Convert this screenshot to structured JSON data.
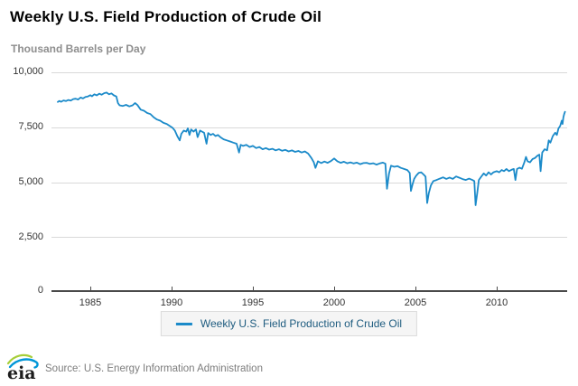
{
  "header": {
    "title": "Weekly U.S. Field Production of Crude Oil",
    "units_label": "Thousand Barrels per Day"
  },
  "legend": {
    "label": "Weekly U.S. Field Production of Crude Oil"
  },
  "footer": {
    "logo_text": "eia",
    "source": "Source: U.S. Energy Information Administration"
  },
  "colors": {
    "line": "#1b8ac9",
    "legend_text": "#1d5b7f",
    "grid": "#d9d9d9",
    "axis": "#4a4a4a",
    "subtitle": "#8e8e8e",
    "logo_green": "#a6ce39",
    "logo_blue": "#0096d7"
  },
  "chart_data": {
    "type": "line",
    "title": "Weekly U.S. Field Production of Crude Oil",
    "ylabel": "Thousand Barrels per Day",
    "xlabel": "",
    "x_tick_labels": [
      "1985",
      "1990",
      "1995",
      "2000",
      "2005",
      "2010"
    ],
    "y_tick_labels": [
      "10,000",
      "7,500",
      "5,000",
      "2,500",
      "0"
    ],
    "y_tick_values": [
      10000,
      7500,
      5000,
      2500,
      0
    ],
    "x_range": [
      1982.8,
      2014.4
    ],
    "y_range": [
      0,
      10000
    ],
    "grid": "horizontal",
    "legend_position": "bottom-center",
    "series": [
      {
        "name": "Weekly U.S. Field Production of Crude Oil",
        "points": [
          [
            1983.0,
            8650
          ],
          [
            1983.1,
            8700
          ],
          [
            1983.2,
            8660
          ],
          [
            1983.35,
            8720
          ],
          [
            1983.5,
            8690
          ],
          [
            1983.65,
            8740
          ],
          [
            1983.8,
            8710
          ],
          [
            1983.95,
            8780
          ],
          [
            1984.1,
            8800
          ],
          [
            1984.25,
            8760
          ],
          [
            1984.4,
            8850
          ],
          [
            1984.55,
            8810
          ],
          [
            1984.7,
            8880
          ],
          [
            1984.85,
            8900
          ],
          [
            1985.0,
            8960
          ],
          [
            1985.1,
            8910
          ],
          [
            1985.25,
            9000
          ],
          [
            1985.4,
            8950
          ],
          [
            1985.55,
            9030
          ],
          [
            1985.7,
            8980
          ],
          [
            1985.85,
            9050
          ],
          [
            1986.0,
            9080
          ],
          [
            1986.15,
            9000
          ],
          [
            1986.3,
            9040
          ],
          [
            1986.45,
            8950
          ],
          [
            1986.6,
            8900
          ],
          [
            1986.7,
            8600
          ],
          [
            1986.8,
            8500
          ],
          [
            1987.0,
            8470
          ],
          [
            1987.2,
            8520
          ],
          [
            1987.4,
            8450
          ],
          [
            1987.6,
            8500
          ],
          [
            1987.75,
            8600
          ],
          [
            1987.9,
            8510
          ],
          [
            1988.1,
            8300
          ],
          [
            1988.3,
            8250
          ],
          [
            1988.5,
            8150
          ],
          [
            1988.7,
            8100
          ],
          [
            1988.9,
            7950
          ],
          [
            1989.1,
            7850
          ],
          [
            1989.3,
            7800
          ],
          [
            1989.5,
            7700
          ],
          [
            1989.7,
            7650
          ],
          [
            1989.9,
            7550
          ],
          [
            1990.05,
            7480
          ],
          [
            1990.2,
            7350
          ],
          [
            1990.35,
            7100
          ],
          [
            1990.5,
            6900
          ],
          [
            1990.6,
            7200
          ],
          [
            1990.75,
            7350
          ],
          [
            1990.9,
            7300
          ],
          [
            1991.0,
            7450
          ],
          [
            1991.1,
            7150
          ],
          [
            1991.2,
            7400
          ],
          [
            1991.35,
            7300
          ],
          [
            1991.5,
            7400
          ],
          [
            1991.6,
            7050
          ],
          [
            1991.75,
            7350
          ],
          [
            1991.9,
            7290
          ],
          [
            1992.0,
            7250
          ],
          [
            1992.15,
            6750
          ],
          [
            1992.25,
            7240
          ],
          [
            1992.4,
            7150
          ],
          [
            1992.55,
            7200
          ],
          [
            1992.7,
            7100
          ],
          [
            1992.85,
            7150
          ],
          [
            1993.0,
            7050
          ],
          [
            1993.2,
            6950
          ],
          [
            1993.4,
            6900
          ],
          [
            1993.6,
            6850
          ],
          [
            1993.8,
            6800
          ],
          [
            1994.0,
            6750
          ],
          [
            1994.15,
            6350
          ],
          [
            1994.25,
            6700
          ],
          [
            1994.4,
            6650
          ],
          [
            1994.6,
            6700
          ],
          [
            1994.8,
            6600
          ],
          [
            1995.0,
            6650
          ],
          [
            1995.2,
            6550
          ],
          [
            1995.4,
            6600
          ],
          [
            1995.6,
            6500
          ],
          [
            1995.8,
            6550
          ],
          [
            1996.0,
            6480
          ],
          [
            1996.2,
            6520
          ],
          [
            1996.4,
            6450
          ],
          [
            1996.6,
            6500
          ],
          [
            1996.8,
            6430
          ],
          [
            1997.0,
            6470
          ],
          [
            1997.2,
            6400
          ],
          [
            1997.4,
            6450
          ],
          [
            1997.6,
            6380
          ],
          [
            1997.8,
            6420
          ],
          [
            1998.0,
            6350
          ],
          [
            1998.2,
            6400
          ],
          [
            1998.4,
            6300
          ],
          [
            1998.6,
            6100
          ],
          [
            1998.75,
            5900
          ],
          [
            1998.85,
            5650
          ],
          [
            1999.0,
            5950
          ],
          [
            1999.2,
            5870
          ],
          [
            1999.4,
            5940
          ],
          [
            1999.6,
            5880
          ],
          [
            1999.8,
            5960
          ],
          [
            2000.0,
            6080
          ],
          [
            2000.2,
            5950
          ],
          [
            2000.4,
            5880
          ],
          [
            2000.6,
            5930
          ],
          [
            2000.8,
            5860
          ],
          [
            2001.0,
            5900
          ],
          [
            2001.2,
            5850
          ],
          [
            2001.4,
            5890
          ],
          [
            2001.6,
            5820
          ],
          [
            2001.8,
            5870
          ],
          [
            2002.0,
            5880
          ],
          [
            2002.2,
            5830
          ],
          [
            2002.4,
            5860
          ],
          [
            2002.6,
            5800
          ],
          [
            2002.8,
            5850
          ],
          [
            2003.0,
            5890
          ],
          [
            2003.15,
            5840
          ],
          [
            2003.25,
            4700
          ],
          [
            2003.38,
            5400
          ],
          [
            2003.5,
            5750
          ],
          [
            2003.7,
            5700
          ],
          [
            2003.9,
            5730
          ],
          [
            2004.1,
            5650
          ],
          [
            2004.3,
            5600
          ],
          [
            2004.5,
            5550
          ],
          [
            2004.65,
            5420
          ],
          [
            2004.72,
            4600
          ],
          [
            2004.82,
            4900
          ],
          [
            2004.92,
            5150
          ],
          [
            2005.05,
            5300
          ],
          [
            2005.2,
            5420
          ],
          [
            2005.35,
            5450
          ],
          [
            2005.5,
            5350
          ],
          [
            2005.62,
            5250
          ],
          [
            2005.72,
            4050
          ],
          [
            2005.82,
            4500
          ],
          [
            2005.95,
            4850
          ],
          [
            2006.1,
            5050
          ],
          [
            2006.3,
            5100
          ],
          [
            2006.5,
            5160
          ],
          [
            2006.7,
            5220
          ],
          [
            2006.9,
            5150
          ],
          [
            2007.1,
            5210
          ],
          [
            2007.3,
            5150
          ],
          [
            2007.5,
            5260
          ],
          [
            2007.7,
            5200
          ],
          [
            2007.9,
            5140
          ],
          [
            2008.1,
            5100
          ],
          [
            2008.3,
            5160
          ],
          [
            2008.5,
            5100
          ],
          [
            2008.62,
            5050
          ],
          [
            2008.7,
            3950
          ],
          [
            2008.8,
            4500
          ],
          [
            2008.9,
            5100
          ],
          [
            2009.05,
            5250
          ],
          [
            2009.2,
            5400
          ],
          [
            2009.35,
            5300
          ],
          [
            2009.5,
            5450
          ],
          [
            2009.65,
            5350
          ],
          [
            2009.8,
            5450
          ],
          [
            2010.0,
            5500
          ],
          [
            2010.15,
            5450
          ],
          [
            2010.3,
            5550
          ],
          [
            2010.45,
            5500
          ],
          [
            2010.6,
            5600
          ],
          [
            2010.75,
            5500
          ],
          [
            2010.9,
            5560
          ],
          [
            2011.05,
            5600
          ],
          [
            2011.15,
            5100
          ],
          [
            2011.25,
            5600
          ],
          [
            2011.4,
            5660
          ],
          [
            2011.55,
            5610
          ],
          [
            2011.7,
            5900
          ],
          [
            2011.8,
            6150
          ],
          [
            2011.9,
            5950
          ],
          [
            2012.05,
            5900
          ],
          [
            2012.2,
            6050
          ],
          [
            2012.35,
            6100
          ],
          [
            2012.5,
            6200
          ],
          [
            2012.62,
            6250
          ],
          [
            2012.7,
            5500
          ],
          [
            2012.8,
            6350
          ],
          [
            2012.95,
            6500
          ],
          [
            2013.1,
            6450
          ],
          [
            2013.2,
            6900
          ],
          [
            2013.3,
            6800
          ],
          [
            2013.45,
            7100
          ],
          [
            2013.6,
            7250
          ],
          [
            2013.7,
            7150
          ],
          [
            2013.8,
            7450
          ],
          [
            2013.9,
            7550
          ],
          [
            2014.0,
            7800
          ],
          [
            2014.05,
            7650
          ],
          [
            2014.1,
            7950
          ],
          [
            2014.15,
            8100
          ],
          [
            2014.2,
            8200
          ]
        ]
      }
    ]
  }
}
